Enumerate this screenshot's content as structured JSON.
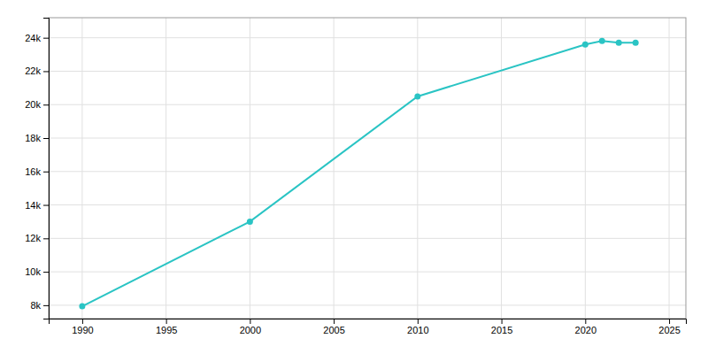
{
  "chart_data": {
    "type": "line",
    "x": [
      1990,
      2000,
      2010,
      2020,
      2021,
      2022,
      2023
    ],
    "values": [
      7938,
      13001,
      20488,
      23601,
      23814,
      23710,
      23709
    ],
    "color": "#2ac4c4",
    "marker": "circle",
    "xlim": [
      1988,
      2026
    ],
    "xticks": [
      1990,
      1995,
      2000,
      2005,
      2010,
      2015,
      2020,
      2025
    ],
    "ylim": [
      7200,
      25200
    ],
    "yticks": [
      {
        "value": 8000,
        "label": "8k"
      },
      {
        "value": 10000,
        "label": "10k"
      },
      {
        "value": 12000,
        "label": "12k"
      },
      {
        "value": 14000,
        "label": "14k"
      },
      {
        "value": 16000,
        "label": "16k"
      },
      {
        "value": 18000,
        "label": "18k"
      },
      {
        "value": 20000,
        "label": "20k"
      },
      {
        "value": 22000,
        "label": "22k"
      },
      {
        "value": 24000,
        "label": "24k"
      }
    ],
    "grid": true
  }
}
